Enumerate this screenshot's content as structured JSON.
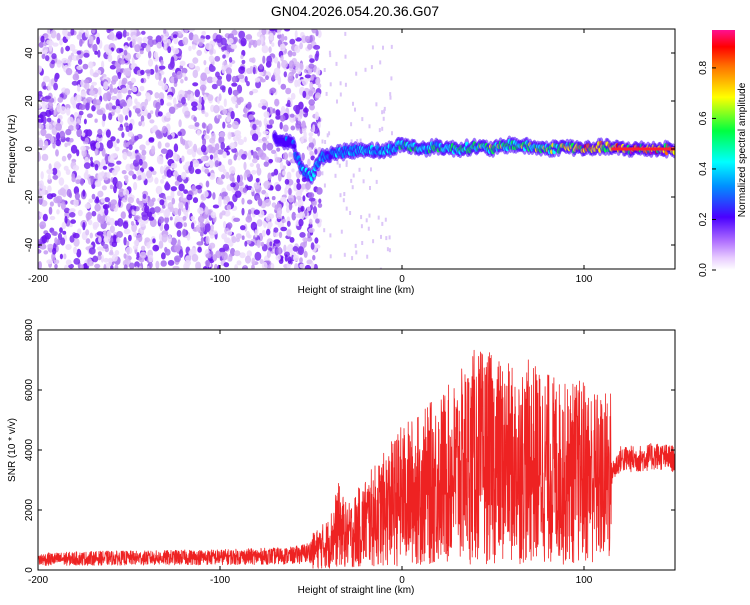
{
  "title": "GN04.2026.054.20.36.G07",
  "chart_data": [
    {
      "type": "heatmap",
      "xlabel": "Height of straight line (km)",
      "ylabel": "Frequency (Hz)",
      "xlim": [
        -200,
        150
      ],
      "ylim": [
        -50,
        50
      ],
      "x_ticks": [
        -200,
        -100,
        0,
        100
      ],
      "y_ticks": [
        -40,
        -20,
        0,
        20,
        40
      ],
      "colorbar": {
        "label": "Normalized spectral amplitude",
        "range": [
          0,
          0.95
        ],
        "ticks": [
          0,
          0.2,
          0.4,
          0.6,
          0.8
        ]
      },
      "ridge": {
        "description_points_x": [
          -70,
          -60,
          -55,
          -50,
          -45,
          -40,
          -30,
          -20,
          -10,
          0,
          10,
          20,
          30,
          40,
          50,
          60,
          70,
          80,
          90,
          100,
          110,
          120,
          150
        ],
        "frequency": [
          5,
          2,
          -8,
          -12,
          -4,
          -2,
          -1,
          0,
          -1,
          2,
          0,
          1,
          0,
          1,
          0,
          2,
          1,
          0,
          1,
          0,
          1,
          0,
          0
        ],
        "amplitude": [
          0.25,
          0.3,
          0.45,
          0.5,
          0.45,
          0.4,
          0.45,
          0.5,
          0.5,
          0.6,
          0.6,
          0.6,
          0.65,
          0.65,
          0.7,
          0.65,
          0.7,
          0.75,
          0.8,
          0.85,
          0.85,
          0.95,
          0.95
        ]
      },
      "noise_region_x": [
        -200,
        -55
      ]
    },
    {
      "type": "line",
      "xlabel": "Height of straight line (km)",
      "ylabel": "SNR (10 * v/v)",
      "xlim": [
        -200,
        150
      ],
      "ylim": [
        0,
        8000
      ],
      "x_ticks": [
        -200,
        -100,
        0,
        100
      ],
      "y_ticks": [
        0,
        2000,
        4000,
        6000,
        8000
      ],
      "color": "#ee2222",
      "series": [
        {
          "name": "",
          "x": [
            -200,
            -180,
            -160,
            -140,
            -120,
            -100,
            -80,
            -60,
            -50,
            -40,
            -35,
            -30,
            -20,
            -10,
            0,
            10,
            20,
            30,
            40,
            50,
            60,
            70,
            80,
            90,
            100,
            110,
            115,
            120,
            130,
            140,
            150
          ],
          "values": [
            350,
            380,
            400,
            400,
            420,
            430,
            450,
            480,
            600,
            900,
            1500,
            1100,
            1600,
            2000,
            2500,
            2700,
            3000,
            3300,
            3800,
            3700,
            3500,
            3600,
            3400,
            3200,
            3300,
            3000,
            3200,
            3700,
            3700,
            3800,
            3700
          ]
        }
      ]
    }
  ]
}
